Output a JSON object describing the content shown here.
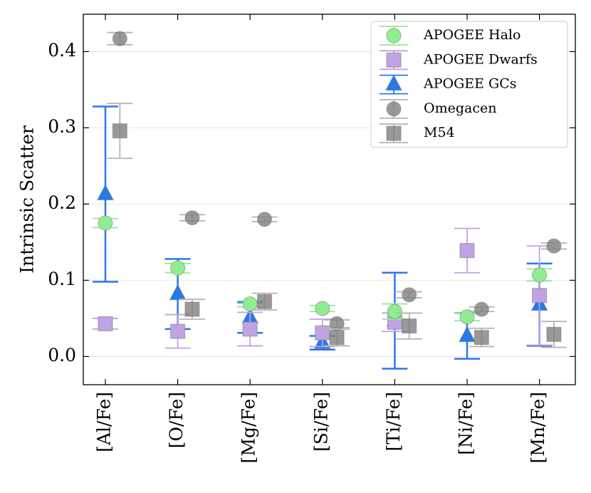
{
  "chart_data": {
    "type": "errorbar",
    "ylabel": "Intrinsic Scatter",
    "categories": [
      "[Al/Fe]",
      "[O/Fe]",
      "[Mg/Fe]",
      "[Si/Fe]",
      "[Ti/Fe]",
      "[Ni/Fe]",
      "[Mn/Fe]"
    ],
    "ylim": [
      -0.037,
      0.449
    ],
    "yticks": [
      {
        "value": 0.0,
        "label": "0.0"
      },
      {
        "value": 0.1,
        "label": "0.1"
      },
      {
        "value": 0.2,
        "label": "0.2"
      },
      {
        "value": 0.3,
        "label": "0.3"
      },
      {
        "value": 0.4,
        "label": "0.4"
      }
    ],
    "grid": true,
    "legend": "upper right",
    "series": [
      {
        "name": "APOGEE Halo",
        "color": "#90ee90",
        "marker": "circle",
        "values": [
          0.175,
          0.116,
          0.069,
          0.063,
          0.059,
          0.052,
          0.107
        ],
        "errors": [
          0.006,
          0.006,
          0.004,
          0.004,
          0.01,
          0.005,
          0.008
        ]
      },
      {
        "name": "APOGEE Dwarfs",
        "color": "#bfa3e3",
        "marker": "square",
        "values": [
          0.043,
          0.033,
          0.036,
          0.031,
          0.045,
          0.139,
          0.08
        ],
        "errors": [
          0.007,
          0.022,
          0.022,
          0.018,
          0.012,
          0.029,
          0.065
        ]
      },
      {
        "name": "APOGEE GCs",
        "color": "#2a78e8",
        "marker": "triangle",
        "values": [
          0.213,
          0.082,
          0.051,
          0.018,
          0.047,
          0.027,
          0.068
        ],
        "errors": [
          0.115,
          0.046,
          0.02,
          0.009,
          0.063,
          0.03,
          0.054
        ]
      },
      {
        "name": "Omegacen",
        "color": "#808080",
        "marker": "circle",
        "values": [
          0.417,
          0.182,
          0.18,
          0.043,
          0.081,
          0.062,
          0.145
        ],
        "errors": [
          0.008,
          0.004,
          0.003,
          0.005,
          0.004,
          0.003,
          0.004
        ]
      },
      {
        "name": "M54",
        "color": "#808080",
        "marker": "square",
        "values": [
          0.296,
          0.062,
          0.072,
          0.025,
          0.04,
          0.025,
          0.029
        ],
        "errors": [
          0.036,
          0.013,
          0.011,
          0.011,
          0.017,
          0.012,
          0.017
        ]
      }
    ]
  }
}
